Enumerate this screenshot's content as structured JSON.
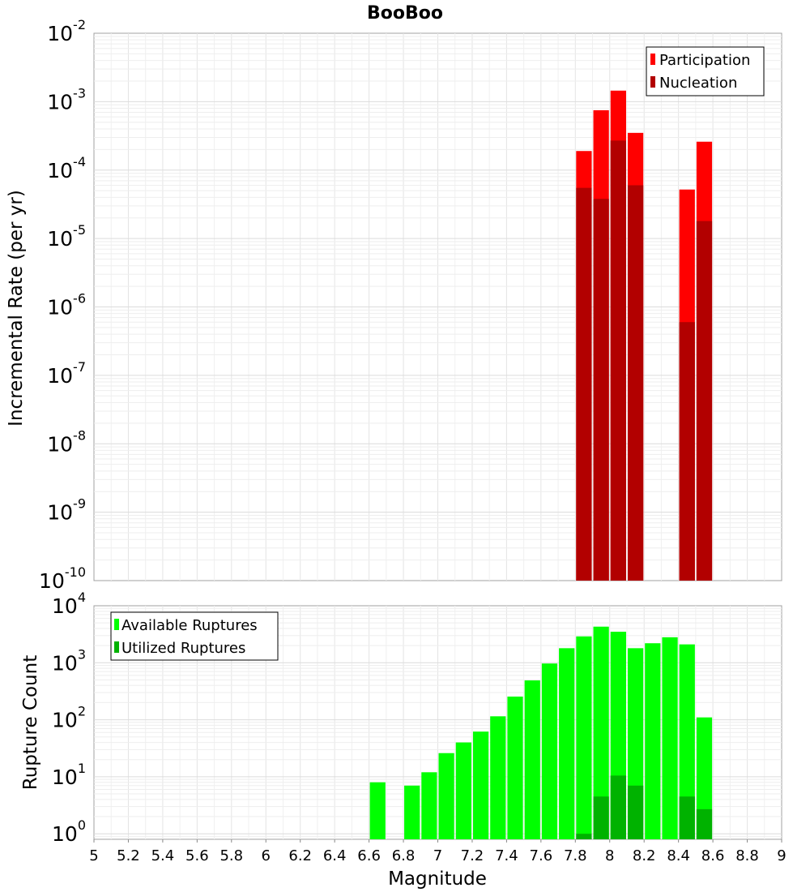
{
  "chart_data": [
    {
      "type": "bar",
      "title": "BooBoo",
      "ylabel": "Incremental Rate (per yr)",
      "xlabel": "",
      "yscale": "log",
      "ylim_exponents": [
        -10,
        -2
      ],
      "xlim": [
        5,
        9
      ],
      "bar_width": 0.1,
      "grid": true,
      "legend": "top-right",
      "series": [
        {
          "name": "Participation",
          "color": "#ff0000",
          "x": [
            7.85,
            7.95,
            8.05,
            8.15,
            8.45,
            8.55
          ],
          "values": [
            0.00019,
            0.00075,
            0.00145,
            0.00035,
            5.2e-05,
            0.00026
          ]
        },
        {
          "name": "Nucleation",
          "color": "#b20000",
          "x": [
            7.85,
            7.95,
            8.05,
            8.15,
            8.45,
            8.55
          ],
          "values": [
            5.5e-05,
            3.8e-05,
            0.00027,
            6e-05,
            6e-07,
            1.8e-05
          ]
        }
      ]
    },
    {
      "type": "bar",
      "title": "",
      "ylabel": "Rupture Count",
      "xlabel": "Magnitude",
      "yscale": "log",
      "ylim_exponents": [
        0,
        4
      ],
      "ymin": 0.8,
      "xlim": [
        5,
        9
      ],
      "bar_width": 0.1,
      "grid": true,
      "legend": "top-left",
      "x_ticks": [
        "5",
        "5.2",
        "5.4",
        "5.6",
        "5.8",
        "6",
        "6.2",
        "6.4",
        "6.6",
        "6.8",
        "7",
        "7.2",
        "7.4",
        "7.6",
        "7.8",
        "8",
        "8.2",
        "8.4",
        "8.6",
        "8.8",
        "9"
      ],
      "series": [
        {
          "name": "Available Ruptures",
          "color": "#00ff00",
          "x": [
            6.65,
            6.85,
            6.95,
            7.05,
            7.15,
            7.25,
            7.35,
            7.45,
            7.55,
            7.65,
            7.75,
            7.85,
            7.95,
            8.05,
            8.15,
            8.25,
            8.35,
            8.45,
            8.55
          ],
          "values": [
            8,
            7,
            12,
            26,
            40,
            62,
            115,
            255,
            490,
            970,
            1800,
            2900,
            4300,
            3500,
            1800,
            2200,
            2800,
            2100,
            110
          ]
        },
        {
          "name": "Utilized Ruptures",
          "color": "#00b200",
          "x": [
            7.85,
            7.95,
            8.05,
            8.15,
            8.45,
            8.55
          ],
          "values": [
            1,
            4.5,
            10.5,
            7,
            4.5,
            2.7
          ]
        }
      ]
    }
  ]
}
